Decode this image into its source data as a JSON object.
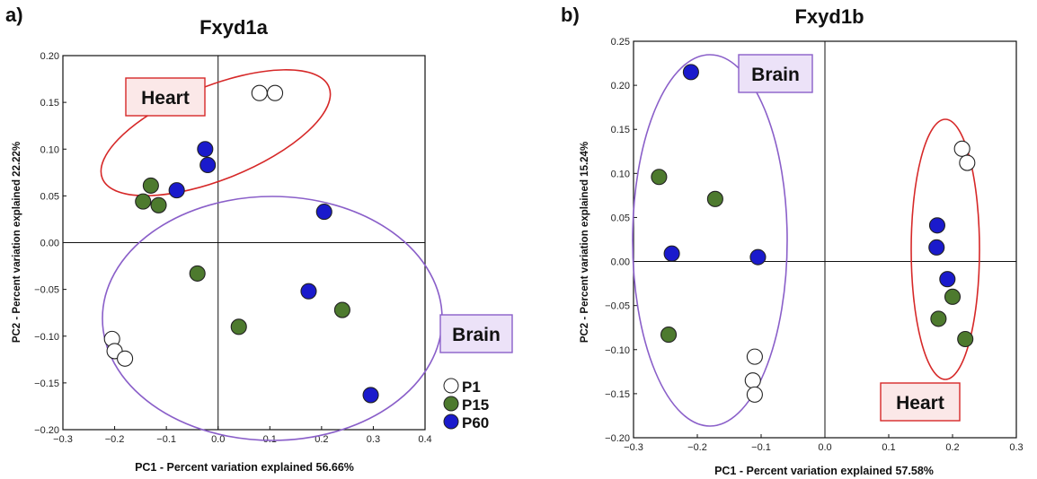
{
  "chart_data": [
    {
      "panel_label": "a)",
      "type": "scatter",
      "title": "Fxyd1a",
      "xlabel": "PC1 - Percent variation explained 56.66%",
      "ylabel": "PC2 - Percent variation explained 22.22%",
      "xlim": [
        -0.3,
        0.4
      ],
      "ylim": [
        -0.2,
        0.2
      ],
      "xticks": [
        "−0.3",
        "−0.2",
        "−0.1",
        "0.0",
        "0.1",
        "0.2",
        "0.3",
        "0.4"
      ],
      "yticks": [
        "−0.20",
        "−0.15",
        "−0.10",
        "−0.05",
        "0.00",
        "0.05",
        "0.10",
        "0.15",
        "0.20"
      ],
      "zero_lines": true,
      "series": [
        {
          "name": "P1",
          "color": "#ffffff",
          "points": [
            [
              0.08,
              0.16
            ],
            [
              0.11,
              0.16
            ],
            [
              -0.205,
              -0.103
            ],
            [
              -0.2,
              -0.116
            ],
            [
              -0.18,
              -0.124
            ]
          ]
        },
        {
          "name": "P15",
          "color": "#4d7a2e",
          "points": [
            [
              -0.13,
              0.061
            ],
            [
              -0.145,
              0.044
            ],
            [
              -0.115,
              0.04
            ],
            [
              -0.04,
              -0.033
            ],
            [
              0.04,
              -0.09
            ],
            [
              0.24,
              -0.072
            ]
          ]
        },
        {
          "name": "P60",
          "color": "#1a1acc",
          "points": [
            [
              -0.08,
              0.056
            ],
            [
              -0.025,
              0.1
            ],
            [
              -0.02,
              0.083
            ],
            [
              0.205,
              0.033
            ],
            [
              0.175,
              -0.052
            ],
            [
              0.295,
              -0.163
            ]
          ]
        }
      ],
      "group_labels": [
        {
          "text": "Heart",
          "color": "#d62828",
          "fill": "#fbe8e8"
        },
        {
          "text": "Brain",
          "color": "#8a5fc9",
          "fill": "#ece2f8"
        }
      ],
      "legend": {
        "entries": [
          "P1",
          "P15",
          "P60"
        ],
        "position": "bottom-right"
      }
    },
    {
      "panel_label": "b)",
      "type": "scatter",
      "title": "Fxyd1b",
      "xlabel": "PC1 - Percent variation explained 57.58%",
      "ylabel": "PC2 - Percent variation explained 15.24%",
      "xlim": [
        -0.3,
        0.3
      ],
      "ylim": [
        -0.2,
        0.25
      ],
      "xticks": [
        "−0.3",
        "−0.2",
        "−0.1",
        "0.0",
        "0.1",
        "0.2",
        "0.3"
      ],
      "yticks": [
        "−0.20",
        "−0.15",
        "−0.10",
        "−0.05",
        "0.00",
        "0.05",
        "0.10",
        "0.15",
        "0.20",
        "0.25"
      ],
      "zero_lines": true,
      "series": [
        {
          "name": "P1",
          "color": "#ffffff",
          "points": [
            [
              0.215,
              0.128
            ],
            [
              0.223,
              0.112
            ],
            [
              -0.11,
              -0.108
            ],
            [
              -0.113,
              -0.135
            ],
            [
              -0.11,
              -0.151
            ]
          ]
        },
        {
          "name": "P15",
          "color": "#4d7a2e",
          "points": [
            [
              -0.26,
              0.096
            ],
            [
              -0.172,
              0.071
            ],
            [
              -0.245,
              -0.083
            ],
            [
              0.2,
              -0.04
            ],
            [
              0.178,
              -0.065
            ],
            [
              0.22,
              -0.088
            ]
          ]
        },
        {
          "name": "P60",
          "color": "#1a1acc",
          "points": [
            [
              -0.21,
              0.215
            ],
            [
              -0.24,
              0.009
            ],
            [
              -0.105,
              0.005
            ],
            [
              0.176,
              0.041
            ],
            [
              0.175,
              0.016
            ],
            [
              0.192,
              -0.02
            ]
          ]
        }
      ],
      "group_labels": [
        {
          "text": "Brain",
          "color": "#8a5fc9",
          "fill": "#ece2f8"
        },
        {
          "text": "Heart",
          "color": "#d62828",
          "fill": "#fbe8e8"
        }
      ]
    }
  ]
}
